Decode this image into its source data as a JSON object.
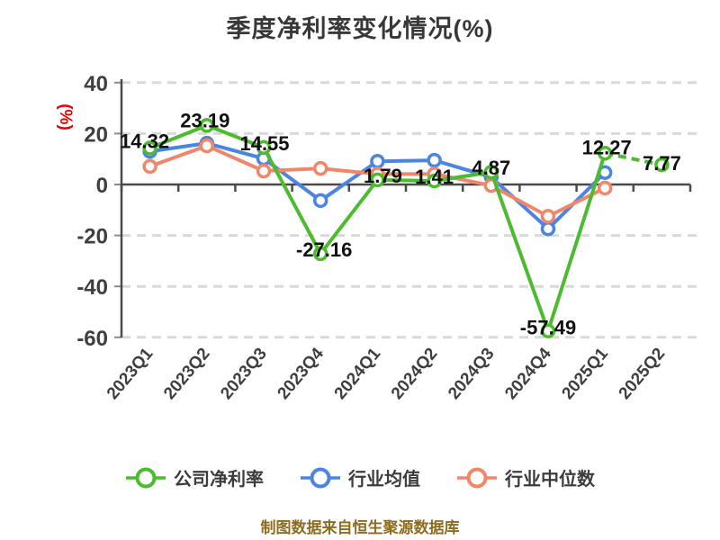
{
  "chart": {
    "title": "季度净利率变化情况(%)",
    "y_axis_unit_label": "(%)",
    "footer": "制图数据来自恒生聚源数据库",
    "colors": {
      "company_line": "#4CBB2F",
      "industry_avg_line": "#4A85E2",
      "industry_median_line": "#F0876A",
      "unit_label": "#E60000",
      "footer_text": "#8D6C1F",
      "axis": "#4A4A4A",
      "grid": "#D9D9D9",
      "tick_text": "#3F3F3F",
      "value_label_text": "#111111"
    }
  },
  "chart_data": {
    "type": "line",
    "title": "季度净利率变化情况(%)",
    "xlabel": "",
    "ylabel": "(%)",
    "categories": [
      "2023Q1",
      "2023Q2",
      "2023Q3",
      "2023Q4",
      "2024Q1",
      "2024Q2",
      "2024Q3",
      "2024Q4",
      "2025Q1",
      "2025Q2"
    ],
    "y_ticks": [
      40,
      20,
      0,
      -20,
      -40,
      -60
    ],
    "ylim": [
      -60,
      40
    ],
    "grid": "horizontal dashed",
    "legend_position": "bottom",
    "series": [
      {
        "name": "公司净利率",
        "color": "#4CBB2F",
        "values": [
          14.32,
          23.19,
          14.55,
          -27.16,
          1.79,
          1.41,
          4.87,
          -57.49,
          12.27,
          7.77
        ],
        "point_labels": [
          "14.32",
          "23.19",
          "14.55",
          "-27.16",
          "1.79",
          "1.41",
          "4.87",
          "-57.49",
          "12.27",
          "7.77"
        ],
        "dashed_from_index": 8
      },
      {
        "name": "行业均值",
        "color": "#4A85E2",
        "values": [
          13.0,
          16.2,
          10.2,
          -6.3,
          9.1,
          9.5,
          2.9,
          -17.4,
          4.7,
          null
        ],
        "estimated_from_pixels": true
      },
      {
        "name": "行业中位数",
        "color": "#F0876A",
        "values": [
          7.1,
          15.2,
          5.3,
          6.3,
          4.1,
          4.1,
          -0.4,
          -12.5,
          -1.4,
          null
        ],
        "estimated_from_pixels": true
      }
    ]
  }
}
